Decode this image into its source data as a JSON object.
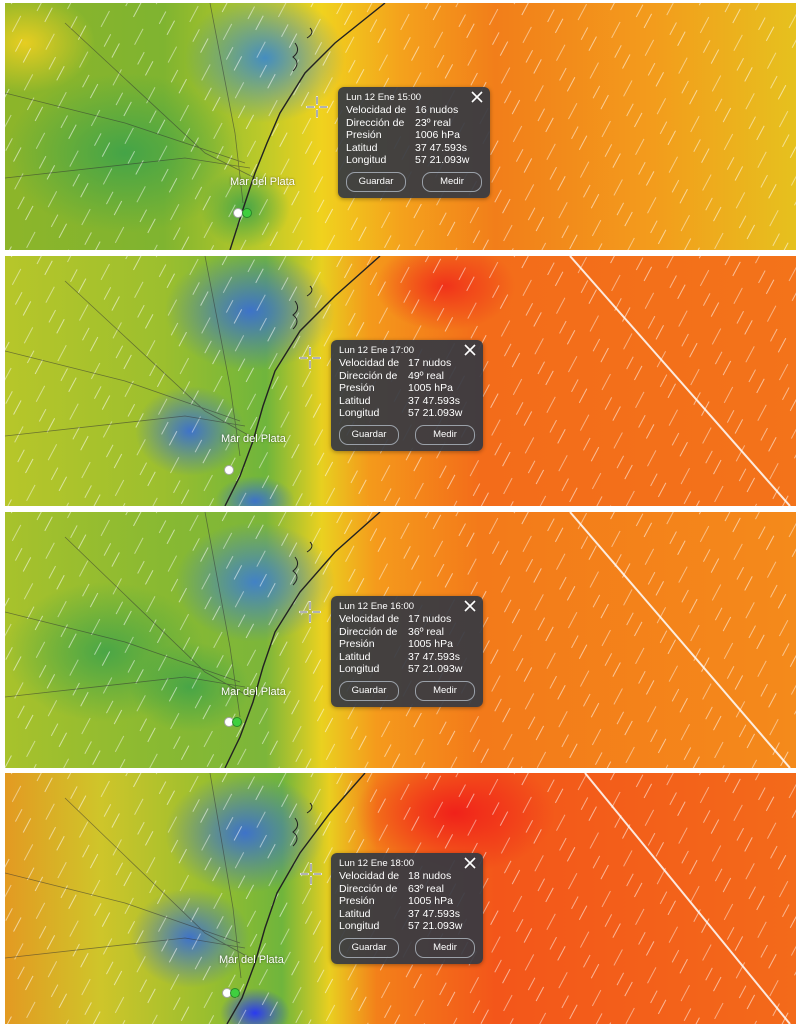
{
  "panels": [
    {
      "popup": {
        "title": "Lun 12 Ene 15:00",
        "rows": [
          {
            "key": "Velocidad de",
            "value": "16 nudos"
          },
          {
            "key": "Dirección de",
            "value": "23º real"
          },
          {
            "key": "Presión",
            "value": "1006 hPa"
          },
          {
            "key": "Latitud",
            "value": "37 47.593s"
          },
          {
            "key": "Longitud",
            "value": "57 21.093w"
          }
        ],
        "save_label": "Guardar",
        "measure_label": "Medir"
      },
      "city_label": "Mar del Plata"
    },
    {
      "popup": {
        "title": "Lun 12 Ene 17:00",
        "rows": [
          {
            "key": "Velocidad de",
            "value": "17 nudos"
          },
          {
            "key": "Dirección de",
            "value": "49º real"
          },
          {
            "key": "Presión",
            "value": "1005 hPa"
          },
          {
            "key": "Latitud",
            "value": "37 47.593s"
          },
          {
            "key": "Longitud",
            "value": "57 21.093w"
          }
        ],
        "save_label": "Guardar",
        "measure_label": "Medir"
      },
      "city_label": "Mar del Plata"
    },
    {
      "popup": {
        "title": "Lun 12 Ene 16:00",
        "rows": [
          {
            "key": "Velocidad de",
            "value": "17 nudos"
          },
          {
            "key": "Dirección de",
            "value": "36º real"
          },
          {
            "key": "Presión",
            "value": "1005 hPa"
          },
          {
            "key": "Latitud",
            "value": "37 47.593s"
          },
          {
            "key": "Longitud",
            "value": "57 21.093w"
          }
        ],
        "save_label": "Guardar",
        "measure_label": "Medir"
      },
      "city_label": "Mar del Plata"
    },
    {
      "popup": {
        "title": "Lun 12 Ene 18:00",
        "rows": [
          {
            "key": "Velocidad de",
            "value": "18 nudos"
          },
          {
            "key": "Dirección de",
            "value": "63º real"
          },
          {
            "key": "Presión",
            "value": "1005 hPa"
          },
          {
            "key": "Latitud",
            "value": "37 47.593s"
          },
          {
            "key": "Longitud",
            "value": "57 21.093w"
          }
        ],
        "save_label": "Guardar",
        "measure_label": "Medir"
      },
      "city_label": "Mar del Plata"
    }
  ],
  "colors": {
    "land_low": "#5fae3a",
    "calm_blue": "#3d7fd0",
    "mid_yellow": "#e3d21e",
    "wind_orange": "#f07a18",
    "wind_red": "#f0341a",
    "popup_bg": "#343842"
  },
  "icons": {
    "crosshair": "crosshair-icon",
    "close": "close-icon",
    "location_marker": "location-marker-icon"
  }
}
